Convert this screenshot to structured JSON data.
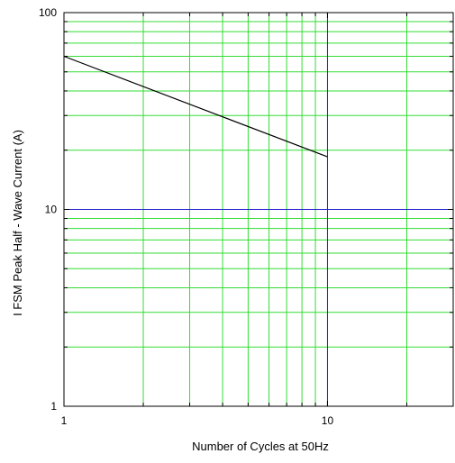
{
  "chart_data": {
    "type": "line",
    "title": "",
    "xlabel": "Number of Cycles at 50Hz",
    "ylabel": "I FSM   Peak Half - Wave Current   (A)",
    "xscale": "log",
    "yscale": "log",
    "xlim": [
      1,
      30
    ],
    "ylim": [
      1,
      100
    ],
    "x_ticks": [
      1,
      10
    ],
    "x_tick_labels": [
      "1",
      "10"
    ],
    "y_ticks": [
      1,
      10,
      100
    ],
    "y_tick_labels": [
      "1",
      "10",
      "100"
    ],
    "grid": true,
    "x_gridlines": [
      2,
      3,
      4,
      5,
      6,
      7,
      8,
      9,
      20
    ],
    "y_gridlines": [
      2,
      3,
      4,
      5,
      6,
      7,
      8,
      9,
      20,
      30,
      40,
      50,
      60,
      70,
      80,
      90
    ],
    "decade_lines_x": [
      10
    ],
    "decade_lines_y": [
      10
    ],
    "series": [
      {
        "x": [
          1,
          10
        ],
        "y": [
          60,
          18.5
        ]
      }
    ],
    "colors": {
      "grid": "#33dd33",
      "decade": "#2222cc",
      "line": "#000000",
      "frame": "#000000"
    }
  }
}
